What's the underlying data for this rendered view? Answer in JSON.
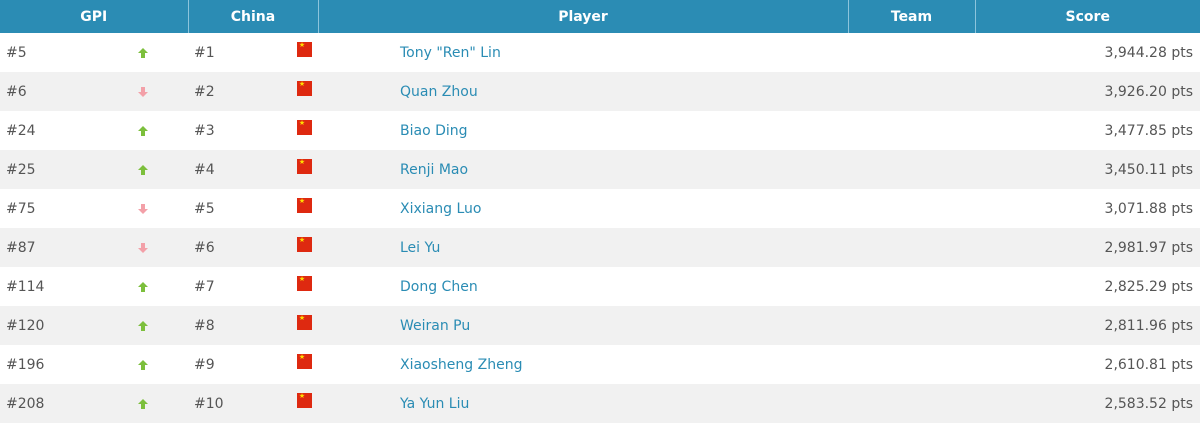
{
  "headers": {
    "gpi": "GPI",
    "china": "China",
    "player": "Player",
    "team": "Team",
    "score": "Score"
  },
  "colors": {
    "header": "#2b8cb4",
    "link": "#2a8cb4",
    "up": "#7cbf3c",
    "down": "#f3a0a8"
  },
  "rows": [
    {
      "gpi": "#5",
      "trend": "up",
      "china": "#1",
      "flag": "china-flag",
      "player": "Tony \"Ren\" Lin",
      "team": "",
      "score": "3,944.28 pts"
    },
    {
      "gpi": "#6",
      "trend": "down",
      "china": "#2",
      "flag": "china-flag",
      "player": "Quan Zhou",
      "team": "",
      "score": "3,926.20 pts"
    },
    {
      "gpi": "#24",
      "trend": "up",
      "china": "#3",
      "flag": "china-flag",
      "player": "Biao Ding",
      "team": "",
      "score": "3,477.85 pts"
    },
    {
      "gpi": "#25",
      "trend": "up",
      "china": "#4",
      "flag": "china-flag",
      "player": "Renji Mao",
      "team": "",
      "score": "3,450.11 pts"
    },
    {
      "gpi": "#75",
      "trend": "down",
      "china": "#5",
      "flag": "china-flag",
      "player": "Xixiang Luo",
      "team": "",
      "score": "3,071.88 pts"
    },
    {
      "gpi": "#87",
      "trend": "down",
      "china": "#6",
      "flag": "china-flag",
      "player": "Lei Yu",
      "team": "",
      "score": "2,981.97 pts"
    },
    {
      "gpi": "#114",
      "trend": "up",
      "china": "#7",
      "flag": "china-flag",
      "player": "Dong Chen",
      "team": "",
      "score": "2,825.29 pts"
    },
    {
      "gpi": "#120",
      "trend": "up",
      "china": "#8",
      "flag": "china-flag",
      "player": "Weiran Pu",
      "team": "",
      "score": "2,811.96 pts"
    },
    {
      "gpi": "#196",
      "trend": "up",
      "china": "#9",
      "flag": "china-flag",
      "player": "Xiaosheng Zheng",
      "team": "",
      "score": "2,610.81 pts"
    },
    {
      "gpi": "#208",
      "trend": "up",
      "china": "#10",
      "flag": "china-flag",
      "player": "Ya Yun Liu",
      "team": "",
      "score": "2,583.52 pts"
    }
  ]
}
